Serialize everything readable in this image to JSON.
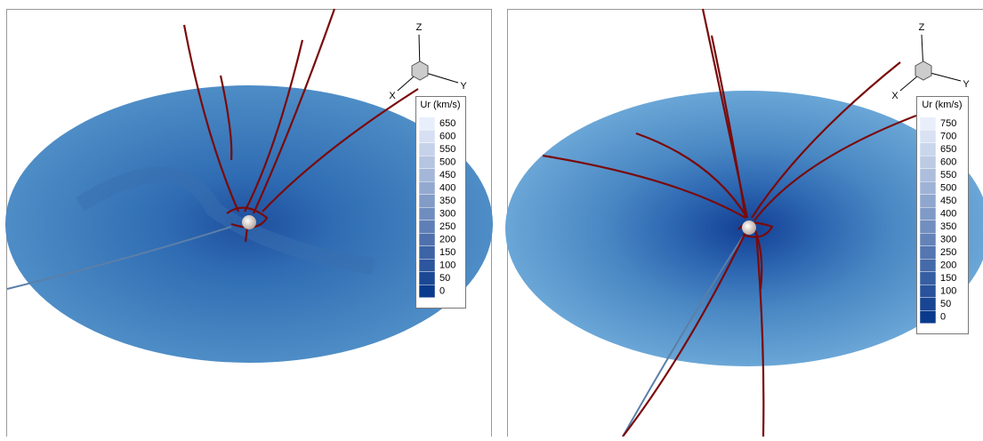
{
  "panels": [
    {
      "triad": {
        "z": "Z",
        "y": "Y",
        "x": "X"
      },
      "legend": {
        "title": "Ur (km/s)",
        "levels": [
          650,
          600,
          550,
          500,
          450,
          400,
          350,
          300,
          250,
          200,
          150,
          100,
          50,
          0
        ]
      }
    },
    {
      "triad": {
        "z": "Z",
        "y": "Y",
        "x": "X"
      },
      "legend": {
        "title": "Ur (km/s)",
        "levels": [
          750,
          700,
          650,
          600,
          550,
          500,
          450,
          400,
          350,
          300,
          250,
          200,
          150,
          100,
          50,
          0
        ]
      }
    }
  ]
}
